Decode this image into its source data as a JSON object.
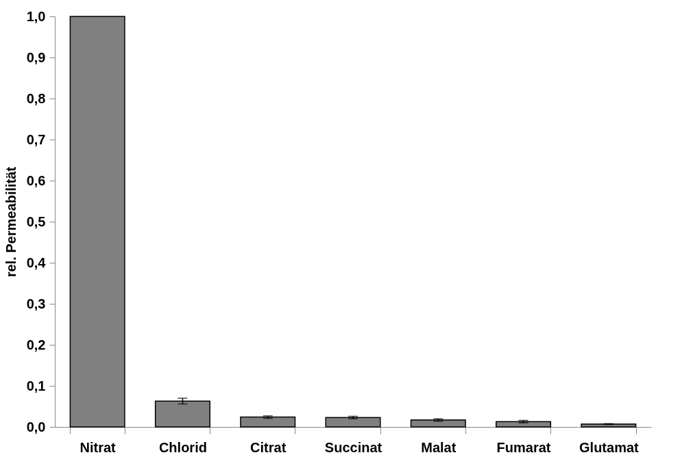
{
  "chart_data": {
    "type": "bar",
    "ylabel": "rel. Permeabilität",
    "categories": [
      "Nitrat",
      "Chlorid",
      "Citrat",
      "Succinat",
      "Malat",
      "Fumarat",
      "Glutamat"
    ],
    "values": [
      1.0,
      0.063,
      0.024,
      0.023,
      0.017,
      0.013,
      0.007
    ],
    "errors": [
      null,
      0.007,
      0.003,
      0.003,
      0.003,
      0.003,
      0.001
    ],
    "color": "#808080",
    "ylim": [
      0,
      1.0
    ],
    "yticks": [
      {
        "value": 0,
        "label": "0,0"
      },
      {
        "value": 0.1,
        "label": "0,1"
      },
      {
        "value": 0.2,
        "label": "0,2"
      },
      {
        "value": 0.3,
        "label": "0,3"
      },
      {
        "value": 0.4,
        "label": "0,4"
      },
      {
        "value": 0.5,
        "label": "0,5"
      },
      {
        "value": 0.6,
        "label": "0,6"
      },
      {
        "value": 0.7,
        "label": "0,7"
      },
      {
        "value": 0.8,
        "label": "0,8"
      },
      {
        "value": 0.9,
        "label": "0,9"
      },
      {
        "value": 1.0,
        "label": "1,0"
      }
    ],
    "grid": false
  }
}
